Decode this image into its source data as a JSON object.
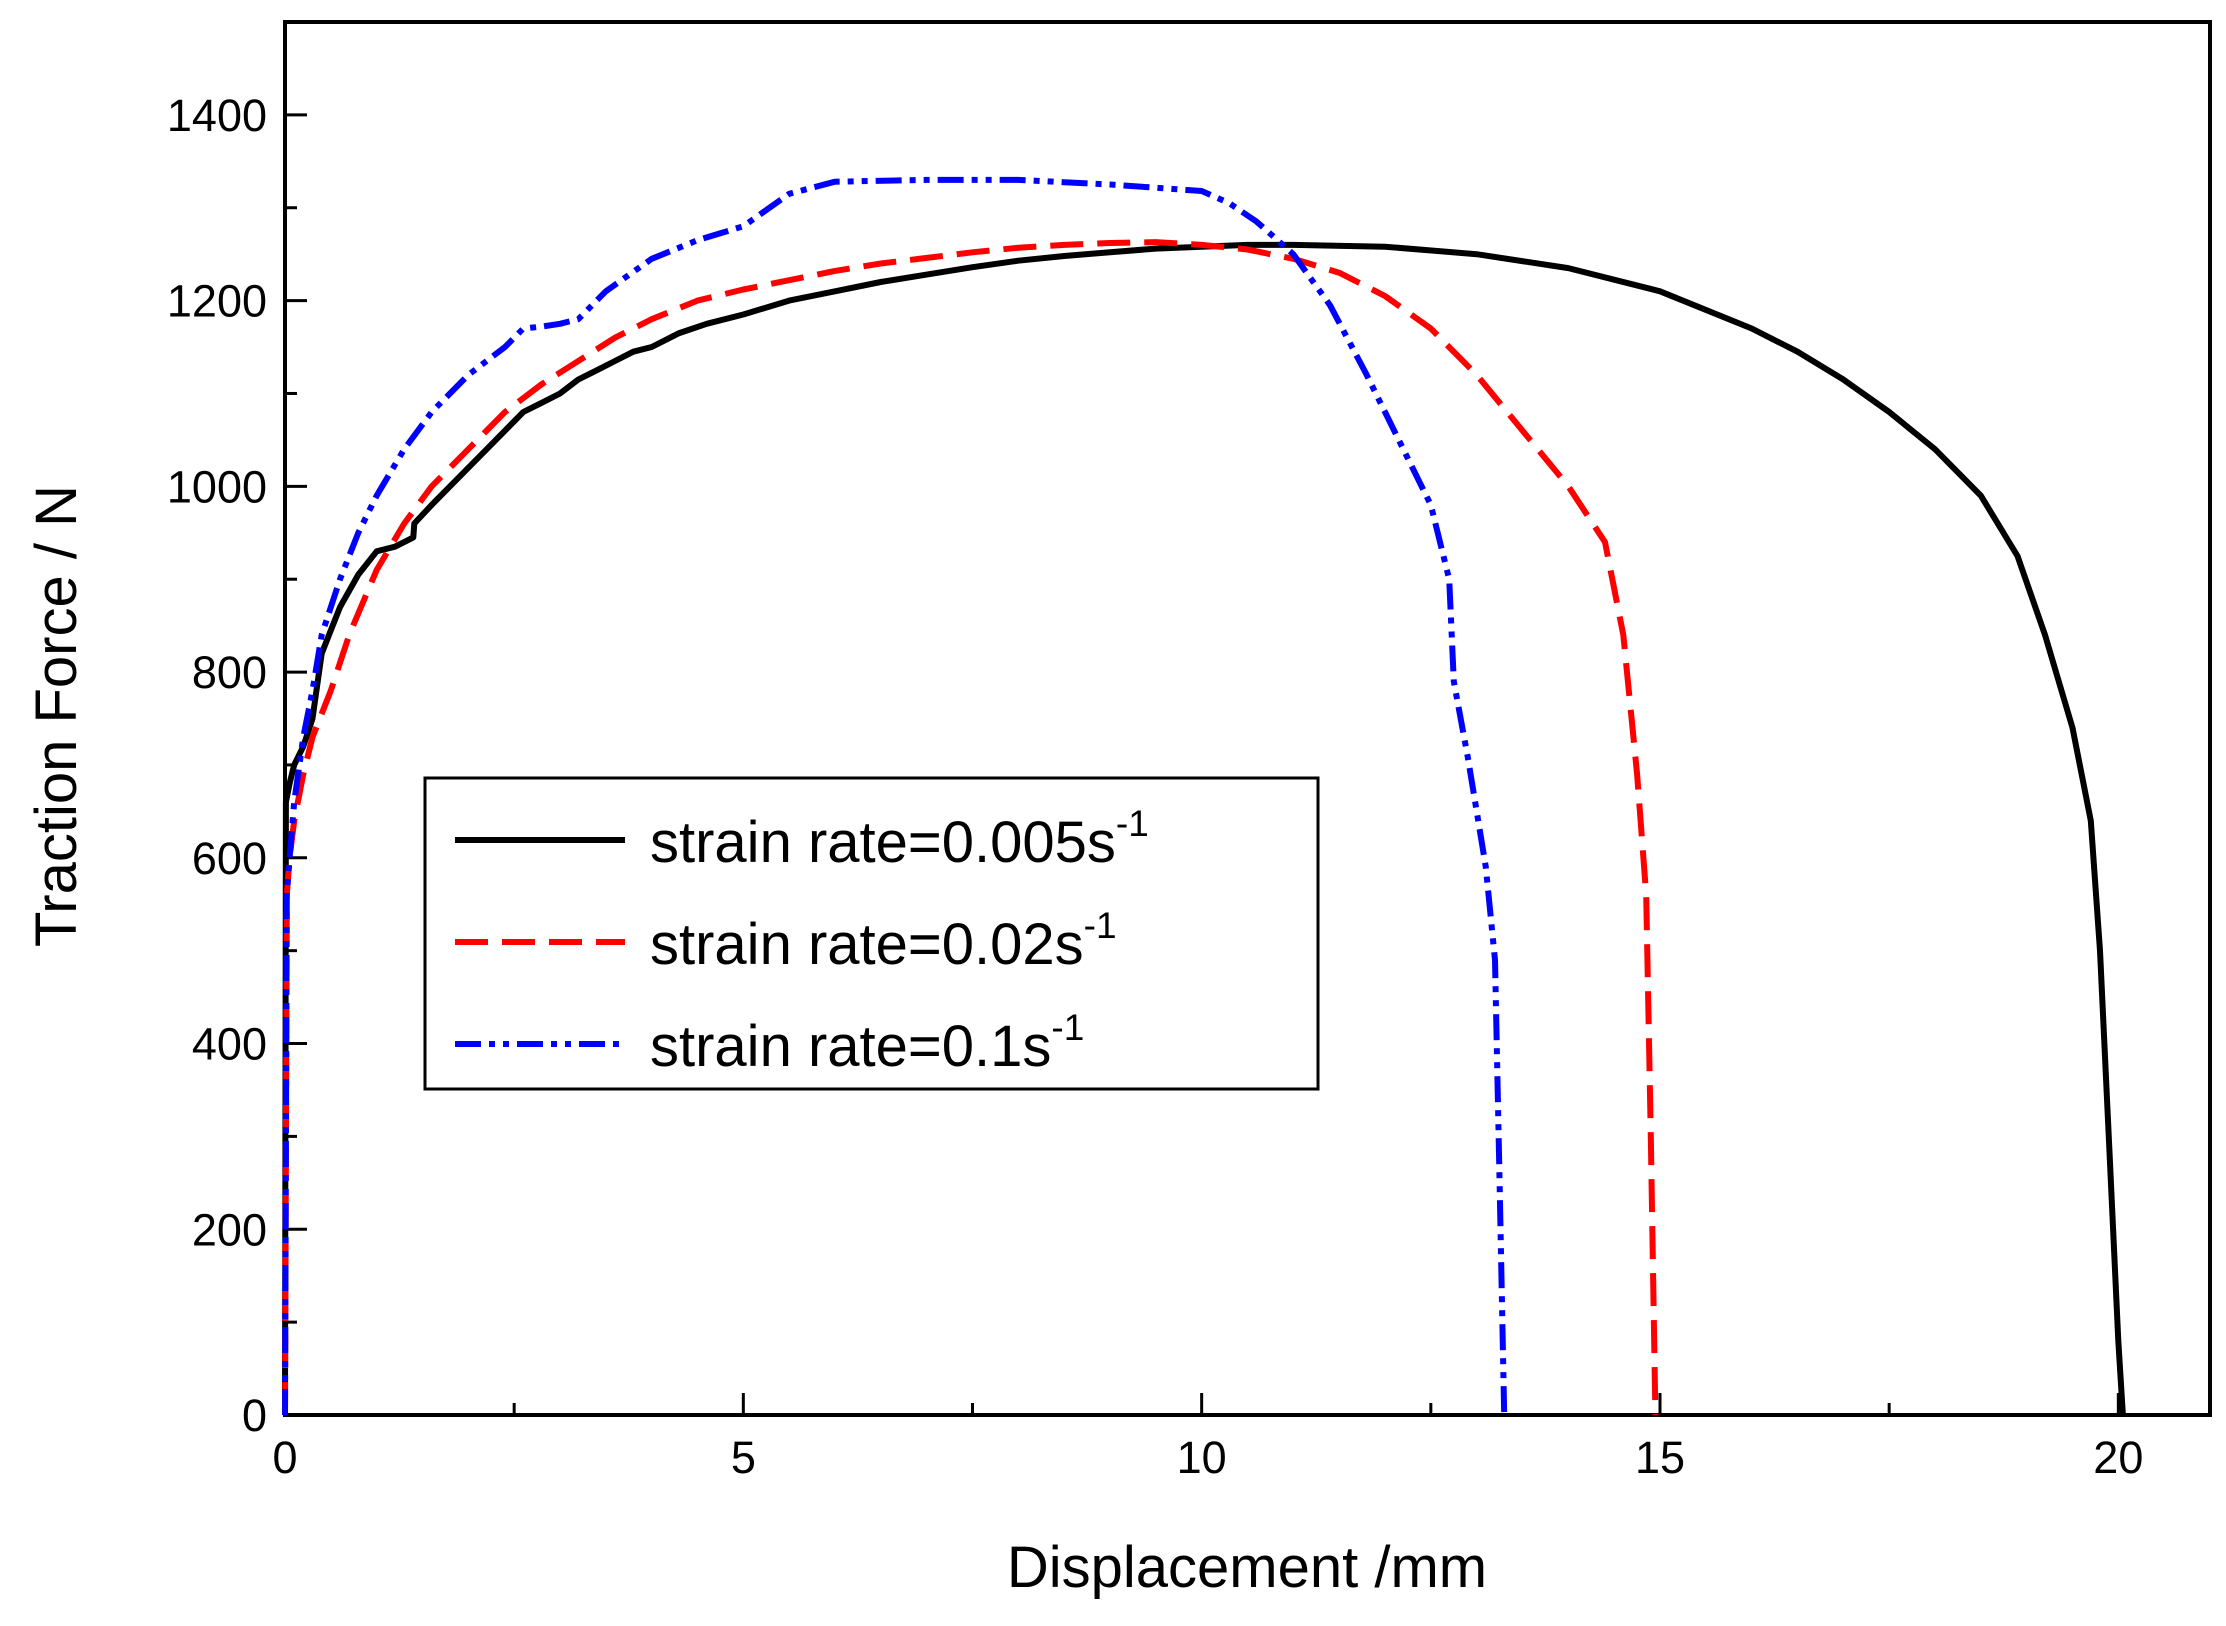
{
  "chart_data": {
    "type": "line",
    "title": "",
    "xlabel": "Displacement  /mm",
    "ylabel": "Traction Force  / N",
    "xlim": [
      0,
      21
    ],
    "ylim": [
      0,
      1500
    ],
    "xticks": [
      0,
      5,
      10,
      15,
      20
    ],
    "xtick_labels": [
      "0",
      "5",
      "10",
      "15",
      "20"
    ],
    "yticks": [
      0,
      200,
      400,
      600,
      800,
      1000,
      1200,
      1400
    ],
    "ytick_labels": [
      "0",
      "200",
      "400",
      "600",
      "800",
      "1000",
      "1200",
      "1400"
    ],
    "grid": false,
    "legend_position": "center-left",
    "series": [
      {
        "name": "strain rate=0.005s",
        "name_sup": "-1",
        "color": "#000000",
        "style": "solid",
        "x": [
          0,
          0.01,
          0.05,
          0.1,
          0.2,
          0.3,
          0.4,
          0.6,
          0.8,
          1.0,
          1.2,
          1.4,
          1.41,
          1.6,
          1.8,
          2.0,
          2.2,
          2.4,
          2.6,
          2.8,
          3.0,
          3.2,
          3.4,
          3.6,
          3.8,
          4.0,
          4.3,
          4.6,
          5.0,
          5.5,
          6.0,
          6.5,
          7.0,
          7.5,
          8.0,
          8.5,
          9.0,
          9.5,
          10.0,
          10.5,
          11.0,
          12.0,
          13.0,
          14.0,
          15.0,
          16.0,
          16.5,
          17.0,
          17.5,
          18.0,
          18.5,
          18.9,
          19.2,
          19.5,
          19.7,
          19.8,
          19.9,
          20.0,
          20.05
        ],
        "y": [
          0,
          660,
          680,
          700,
          720,
          750,
          820,
          870,
          905,
          930,
          935,
          945,
          960,
          980,
          1000,
          1020,
          1040,
          1060,
          1080,
          1090,
          1100,
          1115,
          1125,
          1135,
          1145,
          1150,
          1165,
          1175,
          1185,
          1200,
          1210,
          1220,
          1228,
          1236,
          1243,
          1248,
          1252,
          1256,
          1258,
          1260,
          1260,
          1258,
          1250,
          1235,
          1210,
          1170,
          1145,
          1115,
          1080,
          1040,
          990,
          925,
          840,
          740,
          640,
          500,
          290,
          80,
          0
        ]
      },
      {
        "name": "strain rate=0.02s",
        "name_sup": "-1",
        "color": "#ff0000",
        "style": "dashed",
        "x": [
          0,
          0.02,
          0.05,
          0.1,
          0.2,
          0.3,
          0.5,
          0.7,
          1.0,
          1.3,
          1.6,
          2.0,
          2.4,
          2.8,
          3.2,
          3.6,
          4.0,
          4.5,
          5.0,
          5.5,
          6.0,
          6.5,
          7.0,
          7.5,
          8.0,
          8.5,
          9.0,
          9.5,
          10.0,
          10.5,
          11.0,
          11.5,
          12.0,
          12.5,
          13.0,
          13.5,
          14.0,
          14.4,
          14.6,
          14.75,
          14.85,
          14.9,
          14.95
        ],
        "y": [
          0,
          560,
          600,
          640,
          690,
          730,
          780,
          840,
          910,
          960,
          1000,
          1040,
          1080,
          1110,
          1135,
          1160,
          1180,
          1200,
          1212,
          1222,
          1232,
          1240,
          1246,
          1252,
          1257,
          1260,
          1262,
          1263,
          1260,
          1255,
          1245,
          1230,
          1205,
          1170,
          1120,
          1060,
          1000,
          940,
          840,
          690,
          560,
          300,
          0
        ]
      },
      {
        "name": "strain rate=0.1s",
        "name_sup": "-1",
        "color": "#0000ff",
        "style": "dashdot",
        "x": [
          0,
          0.02,
          0.05,
          0.1,
          0.2,
          0.3,
          0.4,
          0.6,
          0.8,
          1.0,
          1.3,
          1.6,
          2.0,
          2.4,
          2.6,
          2.8,
          3.0,
          3.2,
          3.5,
          4.0,
          4.5,
          5.0,
          5.5,
          6.0,
          7.0,
          8.0,
          9.0,
          10.0,
          10.3,
          10.6,
          11.0,
          11.4,
          11.8,
          12.2,
          12.5,
          12.7,
          12.75,
          12.9,
          13.0,
          13.1,
          13.2,
          13.25,
          13.3
        ],
        "y": [
          0,
          560,
          600,
          660,
          730,
          780,
          840,
          900,
          950,
          990,
          1040,
          1080,
          1120,
          1150,
          1170,
          1172,
          1175,
          1180,
          1210,
          1245,
          1265,
          1280,
          1315,
          1328,
          1330,
          1330,
          1325,
          1318,
          1305,
          1285,
          1250,
          1195,
          1120,
          1040,
          980,
          900,
          790,
          710,
          650,
          590,
          490,
          250,
          0
        ]
      }
    ]
  }
}
